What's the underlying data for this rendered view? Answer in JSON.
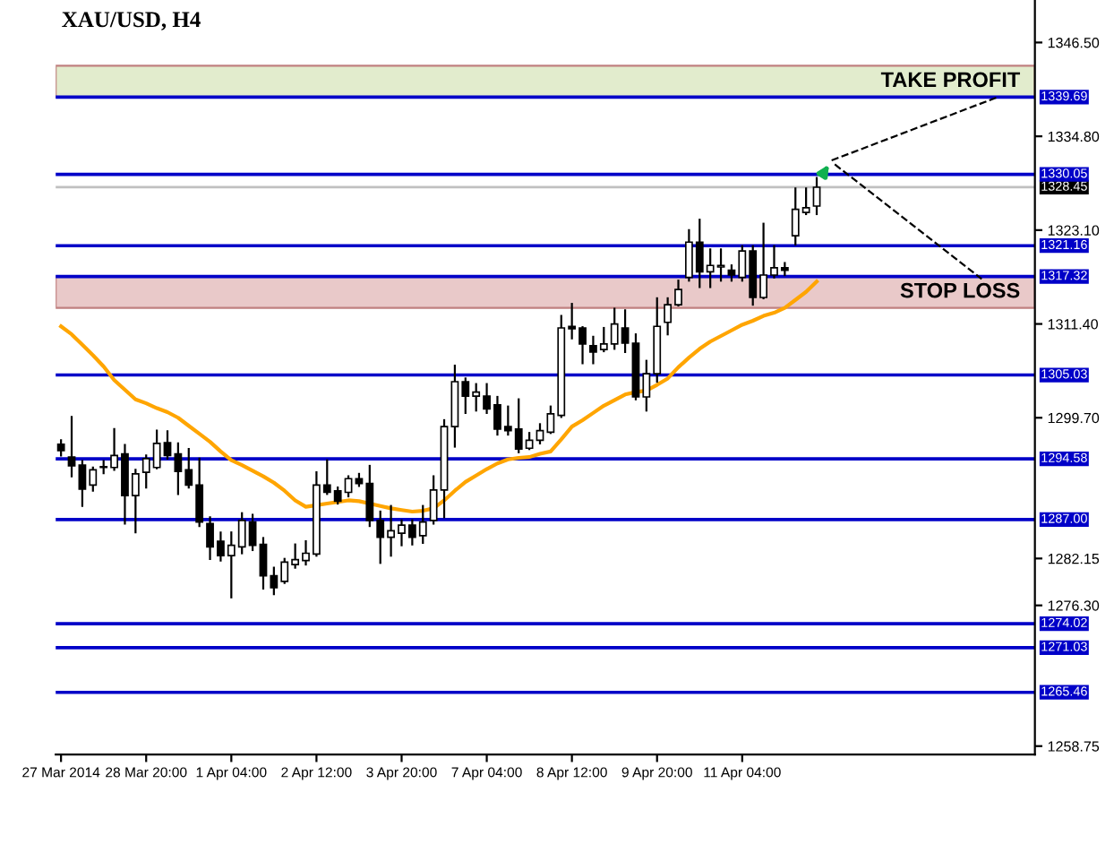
{
  "chart_data": {
    "type": "candlestick",
    "title": "XAU/USD, H4",
    "categories": [
      "27 Mar 2014",
      null,
      null,
      null,
      null,
      null,
      null,
      null,
      "28 Mar 20:00",
      null,
      null,
      null,
      null,
      null,
      null,
      null,
      "1 Apr 04:00",
      null,
      null,
      null,
      null,
      null,
      null,
      null,
      "2 Apr 12:00",
      null,
      null,
      null,
      null,
      null,
      null,
      null,
      "3 Apr 20:00",
      null,
      null,
      null,
      null,
      null,
      null,
      null,
      "7 Apr 04:00",
      null,
      null,
      null,
      null,
      null,
      null,
      null,
      "8 Apr 12:00",
      null,
      null,
      null,
      null,
      null,
      null,
      null,
      "9 Apr 20:00",
      null,
      null,
      null,
      null,
      null,
      null,
      null,
      "11 Apr 04:00",
      null,
      null,
      null,
      null,
      null,
      null,
      null,
      null,
      null,
      null,
      null,
      null,
      null,
      null,
      null,
      null,
      null,
      null,
      null,
      null,
      null,
      null,
      null,
      null,
      null,
      null,
      null
    ],
    "ohlc": [
      [
        1296.4,
        1296.9,
        1295.0,
        1295.6
      ],
      [
        1294.8,
        1299.8,
        1292.4,
        1293.7
      ],
      [
        1293.8,
        1294.3,
        1288.7,
        1290.8
      ],
      [
        1291.3,
        1293.5,
        1290.6,
        1293.2
      ],
      [
        1293.5,
        1294.3,
        1292.8,
        1293.6
      ],
      [
        1293.5,
        1298.3,
        1293.2,
        1295.0
      ],
      [
        1295.2,
        1296.3,
        1286.5,
        1290.0
      ],
      [
        1290.0,
        1293.2,
        1285.4,
        1292.7
      ],
      [
        1292.9,
        1295.0,
        1291.0,
        1294.6
      ],
      [
        1293.5,
        1298.1,
        1293.4,
        1296.5
      ],
      [
        1296.6,
        1298.0,
        1294.6,
        1295.0
      ],
      [
        1295.2,
        1296.5,
        1290.2,
        1293.0
      ],
      [
        1293.2,
        1295.8,
        1291.0,
        1291.3
      ],
      [
        1291.3,
        1294.6,
        1286.2,
        1286.7
      ],
      [
        1286.5,
        1287.3,
        1282.1,
        1283.6
      ],
      [
        1284.3,
        1285.4,
        1281.9,
        1282.5
      ],
      [
        1282.5,
        1285.4,
        1277.3,
        1283.8
      ],
      [
        1283.6,
        1287.8,
        1282.8,
        1286.9
      ],
      [
        1286.7,
        1287.6,
        1283.2,
        1283.8
      ],
      [
        1283.9,
        1284.7,
        1278.4,
        1280.0
      ],
      [
        1280.0,
        1281.0,
        1277.7,
        1278.5
      ],
      [
        1279.3,
        1282.1,
        1279.1,
        1281.7
      ],
      [
        1281.4,
        1283.9,
        1281.0,
        1282.0
      ],
      [
        1281.9,
        1284.3,
        1281.4,
        1282.8
      ],
      [
        1282.7,
        1292.9,
        1282.5,
        1291.3
      ],
      [
        1291.3,
        1294.4,
        1290.2,
        1290.4
      ],
      [
        1290.6,
        1291.0,
        1289.0,
        1289.3
      ],
      [
        1290.4,
        1292.4,
        1289.9,
        1292.1
      ],
      [
        1292.1,
        1292.7,
        1291.2,
        1291.5
      ],
      [
        1291.5,
        1293.7,
        1286.2,
        1286.9
      ],
      [
        1286.9,
        1288.0,
        1281.6,
        1284.8
      ],
      [
        1284.8,
        1288.7,
        1282.5,
        1285.6
      ],
      [
        1285.3,
        1286.9,
        1283.8,
        1286.3
      ],
      [
        1286.3,
        1286.9,
        1283.9,
        1284.8
      ],
      [
        1285.0,
        1288.7,
        1284.1,
        1286.7
      ],
      [
        1286.9,
        1292.4,
        1286.5,
        1290.7
      ],
      [
        1290.7,
        1299.4,
        1287.3,
        1298.6
      ],
      [
        1298.6,
        1306.2,
        1296.1,
        1304.2
      ],
      [
        1304.2,
        1304.6,
        1300.3,
        1302.4
      ],
      [
        1302.4,
        1303.9,
        1300.6,
        1302.9
      ],
      [
        1302.4,
        1303.9,
        1300.3,
        1300.8
      ],
      [
        1301.3,
        1302.3,
        1297.6,
        1298.3
      ],
      [
        1298.6,
        1301.1,
        1297.6,
        1298.1
      ],
      [
        1298.3,
        1302.0,
        1295.4,
        1295.8
      ],
      [
        1295.9,
        1297.8,
        1295.8,
        1296.9
      ],
      [
        1296.9,
        1298.9,
        1296.5,
        1298.1
      ],
      [
        1297.9,
        1301.1,
        1297.8,
        1300.2
      ],
      [
        1300.0,
        1312.4,
        1299.8,
        1310.9
      ],
      [
        1311.1,
        1313.9,
        1309.6,
        1310.8
      ],
      [
        1310.9,
        1311.0,
        1306.5,
        1308.9
      ],
      [
        1308.7,
        1309.8,
        1306.5,
        1307.9
      ],
      [
        1308.2,
        1310.9,
        1308.0,
        1308.9
      ],
      [
        1308.9,
        1313.3,
        1308.3,
        1311.4
      ],
      [
        1310.9,
        1313.1,
        1307.9,
        1309.0
      ],
      [
        1309.0,
        1310.1,
        1302.0,
        1302.3
      ],
      [
        1302.3,
        1306.8,
        1300.6,
        1305.2
      ],
      [
        1305.2,
        1314.6,
        1304.2,
        1311.1
      ],
      [
        1311.6,
        1314.6,
        1310.1,
        1313.8
      ],
      [
        1313.8,
        1316.8,
        1313.7,
        1315.7
      ],
      [
        1317.2,
        1323.1,
        1316.8,
        1321.6
      ],
      [
        1321.6,
        1324.4,
        1316.0,
        1317.9
      ],
      [
        1317.9,
        1320.7,
        1316.0,
        1318.7
      ],
      [
        1318.5,
        1320.7,
        1316.8,
        1318.7
      ],
      [
        1318.1,
        1318.7,
        1316.8,
        1317.5
      ],
      [
        1317.2,
        1321.1,
        1316.8,
        1320.5
      ],
      [
        1320.5,
        1321.1,
        1313.8,
        1314.7
      ],
      [
        1314.7,
        1323.9,
        1314.6,
        1317.5
      ],
      [
        1317.5,
        1321.1,
        1317.2,
        1318.4
      ],
      [
        1318.4,
        1319.0,
        1317.5,
        1318.1
      ],
      [
        1322.4,
        1328.3,
        1321.3,
        1325.7
      ],
      [
        1325.3,
        1328.3,
        1325.1,
        1325.9
      ],
      [
        1326.1,
        1329.6,
        1325.1,
        1328.45
      ],
      null,
      null,
      null,
      null,
      null,
      null,
      null,
      null,
      null,
      null,
      null,
      null,
      null,
      null,
      null,
      null,
      null,
      null,
      null,
      null
    ],
    "series": [
      {
        "type": "line",
        "color": "#ffa500",
        "values": [
          1311.1,
          1310.1,
          1308.8,
          1307.5,
          1306.1,
          1304.4,
          1303.2,
          1302.0,
          1301.5,
          1300.9,
          1300.4,
          1299.7,
          1298.7,
          1297.7,
          1296.7,
          1295.5,
          1294.4,
          1293.8,
          1293.1,
          1292.4,
          1291.6,
          1290.6,
          1289.4,
          1288.6,
          1288.8,
          1289.0,
          1289.2,
          1289.4,
          1289.3,
          1289.0,
          1288.7,
          1288.4,
          1288.2,
          1288.0,
          1288.1,
          1288.4,
          1289.4,
          1290.6,
          1291.7,
          1292.5,
          1293.3,
          1294.0,
          1294.5,
          1294.7,
          1294.8,
          1295.2,
          1295.5,
          1297.0,
          1298.6,
          1299.4,
          1300.3,
          1301.2,
          1301.9,
          1302.6,
          1302.9,
          1303.1,
          1303.8,
          1304.6,
          1306.0,
          1307.2,
          1308.3,
          1309.2,
          1309.9,
          1310.6,
          1311.3,
          1311.8,
          1312.4,
          1312.8,
          1313.4,
          1314.4,
          1315.4,
          1316.7,
          null,
          null,
          null,
          null,
          null,
          null,
          null,
          null,
          null,
          null,
          null,
          null,
          null,
          null,
          null,
          null,
          null,
          null,
          null,
          null
        ]
      }
    ],
    "ylim": [
      1257.7,
      1351.8
    ],
    "yticks": [
      {
        "value": 1346.5,
        "label": "1346.50"
      },
      {
        "value": 1334.8,
        "label": "1334.80"
      },
      {
        "value": 1323.1,
        "label": "1323.10"
      },
      {
        "value": 1311.4,
        "label": "1311.40"
      },
      {
        "value": 1299.7,
        "label": "1299.70"
      },
      1282.15,
      {
        "value": 1276.3,
        "label": "1276.30"
      },
      1258.75
    ],
    "bands": [
      {
        "axis": "y",
        "from": 1339.69,
        "to": 1343.6,
        "label": "TAKE PROFIT",
        "color": "#e2eccd"
      },
      {
        "axis": "y",
        "from": 1313.4,
        "to": 1317.32,
        "label": "STOP LOSS",
        "color": "#e9c9c9"
      }
    ],
    "ref_lines": [
      {
        "axis": "y",
        "value": 1339.69,
        "label": "1339.69",
        "color": "#0000c8"
      },
      {
        "axis": "y",
        "value": 1330.05,
        "label": "1330.05",
        "color": "#0000c8"
      },
      {
        "axis": "y",
        "value": 1328.45,
        "label": "1328.45",
        "color": "#c0c0c0"
      },
      {
        "axis": "y",
        "value": 1321.16,
        "label": "1321.16",
        "color": "#0000c8"
      },
      {
        "axis": "y",
        "value": 1317.32,
        "label": "1317.32",
        "color": "#0000c8"
      },
      {
        "axis": "y",
        "value": 1305.03,
        "label": "1305.03",
        "color": "#0000c8"
      },
      {
        "axis": "y",
        "value": 1294.58,
        "label": "1294.58",
        "color": "#0000c8"
      },
      {
        "axis": "y",
        "value": 1287.0,
        "label": "1287.00",
        "color": "#0000c8"
      },
      {
        "axis": "y",
        "value": 1274.02,
        "label": "1274.02",
        "color": "#0000c8"
      },
      {
        "axis": "y",
        "value": 1271.03,
        "label": "1271.03",
        "color": "#0000c8"
      },
      {
        "axis": "y",
        "value": 1265.46,
        "label": "1265.46",
        "color": "#0000c8"
      }
    ]
  }
}
